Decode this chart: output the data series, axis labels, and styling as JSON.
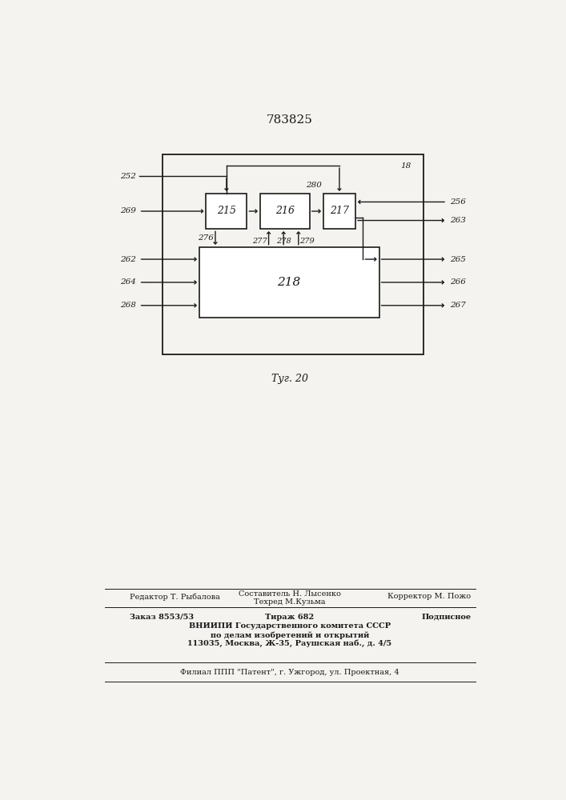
{
  "patent_number": "783825",
  "fig_label": "Τуг. 20",
  "background_color": "#f5f3f0",
  "line_color": "#1a1a1a",
  "label_215": "215",
  "label_216": "216",
  "label_217": "217",
  "label_218": "218",
  "label_18": "18",
  "labels_left": [
    "252",
    "269",
    "262",
    "264",
    "268"
  ],
  "labels_right": [
    "256",
    "263",
    "265",
    "266",
    "267"
  ],
  "labels_internal": [
    "276",
    "277",
    "278",
    "279",
    "280"
  ],
  "font_size_labels": 7.5,
  "font_size_block": 9,
  "font_size_patent": 11,
  "font_size_fig": 9,
  "footer_line1_left": "Редактор Т. Рыбалова",
  "footer_line1_center_top": "Составитель Н. Лысенко",
  "footer_line1_center_bot": "Техред М.Кузьма",
  "footer_line1_right": "Корректор М. Пожо",
  "footer_line2_left": "Заказ 8553/53",
  "footer_line2_center": "Тираж 682",
  "footer_line2_right": "Подписное",
  "footer_line3": "ВНИИПИ Государственного комитета СССР",
  "footer_line4": "по делам изобретений и открытий",
  "footer_line5": "113035, Москва, Ж-35, Раушская наб., д. 4/5",
  "footer_last": "Филиал ППП \"Патент\", г. Ужгород, ул. Проектная, 4"
}
